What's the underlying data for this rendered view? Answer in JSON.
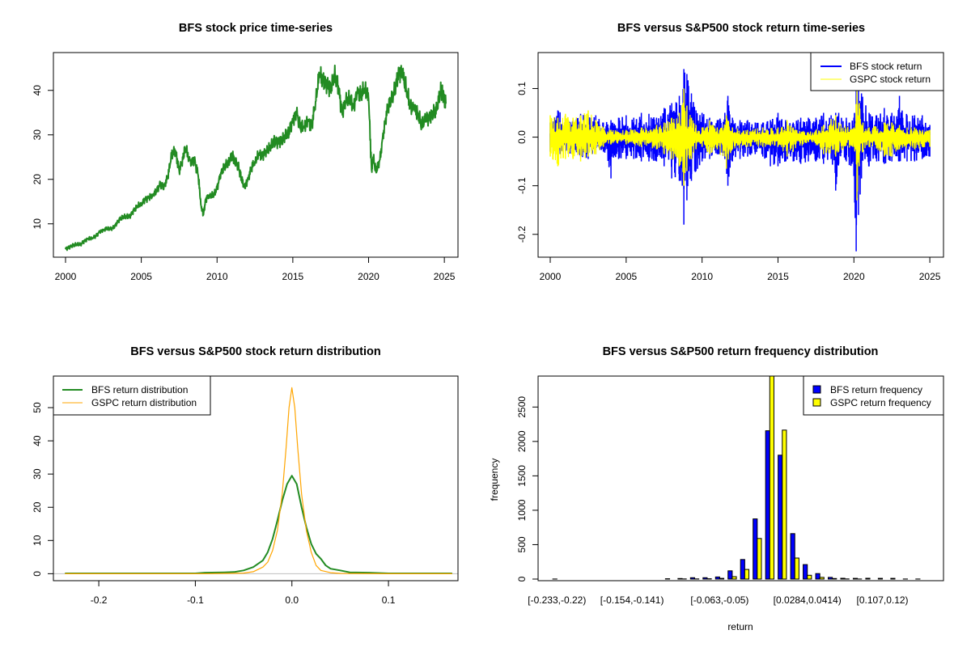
{
  "chart_data": [
    {
      "id": "price",
      "type": "line",
      "title": "BFS stock price time-series",
      "xlabel": "",
      "ylabel": "",
      "xlim": [
        1999.2,
        2025.9
      ],
      "ylim": [
        2.5,
        48.5
      ],
      "x_ticks": [
        2000,
        2005,
        2010,
        2015,
        2020,
        2025
      ],
      "x_tick_labels": [
        "2000",
        "2005",
        "2010",
        "2015",
        "2020",
        "2025"
      ],
      "y_ticks": [
        10,
        20,
        30,
        40
      ],
      "y_tick_labels": [
        "10",
        "20",
        "30",
        "40"
      ],
      "color": "#228B22",
      "series": [
        {
          "name": "BFS",
          "x": [
            2000.0,
            2000.25,
            2000.5,
            2000.75,
            2001.0,
            2001.25,
            2001.5,
            2001.75,
            2002.0,
            2002.25,
            2002.5,
            2002.75,
            2003.0,
            2003.25,
            2003.5,
            2003.75,
            2004.0,
            2004.25,
            2004.5,
            2004.75,
            2005.0,
            2005.25,
            2005.5,
            2005.75,
            2006.0,
            2006.25,
            2006.5,
            2006.75,
            2007.0,
            2007.25,
            2007.5,
            2007.75,
            2007.9,
            2008.25,
            2008.5,
            2008.75,
            2008.95,
            2009.1,
            2009.25,
            2009.5,
            2009.75,
            2010.0,
            2010.25,
            2010.5,
            2010.75,
            2011.0,
            2011.15,
            2011.4,
            2011.6,
            2011.8,
            2012.0,
            2012.25,
            2012.5,
            2012.75,
            2013.0,
            2013.25,
            2013.5,
            2013.75,
            2014.0,
            2014.25,
            2014.5,
            2014.75,
            2015.0,
            2015.25,
            2015.5,
            2015.75,
            2016.0,
            2016.25,
            2016.5,
            2016.75,
            2017.0,
            2017.25,
            2017.5,
            2017.75,
            2018.0,
            2018.25,
            2018.5,
            2018.75,
            2019.0,
            2019.25,
            2019.5,
            2019.75,
            2020.0,
            2020.2,
            2020.3,
            2020.5,
            2020.75,
            2021.0,
            2021.25,
            2021.5,
            2021.75,
            2022.0,
            2022.25,
            2022.5,
            2022.75,
            2023.0,
            2023.25,
            2023.5,
            2023.75,
            2024.0,
            2024.25,
            2024.5,
            2024.75,
            2024.9,
            2025.1
          ],
          "y": [
            4.3,
            4.8,
            5.2,
            5.3,
            5.4,
            6.2,
            6.6,
            6.8,
            7.2,
            8.2,
            8.7,
            8.9,
            8.8,
            9.5,
            10.8,
            11.4,
            11.6,
            11.8,
            13.0,
            13.9,
            14.5,
            15.5,
            15.9,
            16.5,
            17.2,
            19.0,
            18.5,
            20.5,
            25.5,
            26.5,
            22.0,
            24.5,
            27.0,
            24.0,
            24.5,
            21.0,
            14.0,
            12.0,
            15.5,
            16.5,
            16.2,
            18.0,
            21.5,
            23.0,
            23.5,
            25.5,
            24.5,
            23.0,
            20.0,
            18.5,
            19.5,
            22.5,
            24.0,
            25.5,
            25.5,
            26.5,
            27.0,
            28.5,
            28.5,
            28.8,
            29.5,
            30.5,
            33.5,
            35.0,
            31.5,
            32.0,
            33.0,
            32.0,
            37.5,
            43.5,
            42.5,
            41.5,
            40.0,
            43.5,
            41.0,
            35.0,
            37.5,
            38.0,
            36.5,
            39.5,
            39.0,
            40.5,
            38.0,
            22.0,
            25.0,
            21.5,
            24.5,
            31.0,
            36.0,
            37.5,
            40.5,
            44.5,
            43.5,
            40.0,
            36.5,
            36.0,
            35.0,
            32.0,
            33.5,
            34.0,
            35.0,
            35.5,
            40.0,
            39.5,
            37.0
          ]
        }
      ]
    },
    {
      "id": "returns",
      "type": "line",
      "title": "BFS versus S&P500 stock return time-series",
      "xlabel": "",
      "ylabel": "",
      "xlim": [
        1999.2,
        2025.9
      ],
      "ylim": [
        -0.247,
        0.174
      ],
      "x_ticks": [
        2000,
        2005,
        2010,
        2015,
        2020,
        2025
      ],
      "x_tick_labels": [
        "2000",
        "2005",
        "2010",
        "2015",
        "2020",
        "2025"
      ],
      "y_ticks": [
        -0.2,
        -0.1,
        0.0,
        0.1
      ],
      "y_tick_labels": [
        "-0.2",
        "-0.1",
        "0.0",
        "0.1"
      ],
      "legend": {
        "position": "top-right",
        "entries": [
          "BFS stock return",
          "GSPC stock return"
        ]
      },
      "series": [
        {
          "name": "BFS stock return",
          "color": "#0000FF",
          "x": [
            2000.0,
            2000.5,
            2001.0,
            2001.5,
            2002.0,
            2002.5,
            2003.0,
            2003.5,
            2004.0,
            2004.5,
            2005.0,
            2005.5,
            2006.0,
            2006.5,
            2007.0,
            2007.5,
            2008.0,
            2008.5,
            2008.8,
            2009.0,
            2009.3,
            2009.6,
            2010.0,
            2010.5,
            2011.0,
            2011.5,
            2011.7,
            2012.0,
            2012.5,
            2013.0,
            2013.5,
            2014.0,
            2014.5,
            2015.0,
            2015.5,
            2016.0,
            2016.5,
            2017.0,
            2017.5,
            2018.0,
            2018.5,
            2018.8,
            2019.0,
            2019.5,
            2020.0,
            2020.15,
            2020.3,
            2020.5,
            2021.0,
            2021.5,
            2022.0,
            2022.5,
            2023.0,
            2023.5,
            2024.0,
            2024.5,
            2025.0
          ],
          "high": [
            0.03,
            0.055,
            0.045,
            0.035,
            0.048,
            0.045,
            0.045,
            0.03,
            0.035,
            0.04,
            0.045,
            0.04,
            0.05,
            0.048,
            0.04,
            0.06,
            0.07,
            0.085,
            0.14,
            0.13,
            0.09,
            0.055,
            0.05,
            0.04,
            0.035,
            0.05,
            0.085,
            0.04,
            0.035,
            0.035,
            0.03,
            0.03,
            0.035,
            0.05,
            0.035,
            0.03,
            0.04,
            0.04,
            0.04,
            0.05,
            0.045,
            0.05,
            0.05,
            0.04,
            0.04,
            0.1,
            0.095,
            0.09,
            0.05,
            0.045,
            0.06,
            0.05,
            0.085,
            0.045,
            0.045,
            0.045,
            0.025
          ],
          "low": [
            -0.03,
            -0.04,
            -0.035,
            -0.035,
            -0.04,
            -0.045,
            -0.035,
            -0.03,
            -0.085,
            -0.045,
            -0.045,
            -0.045,
            -0.05,
            -0.05,
            -0.05,
            -0.06,
            -0.085,
            -0.09,
            -0.18,
            -0.13,
            -0.09,
            -0.07,
            -0.05,
            -0.045,
            -0.035,
            -0.045,
            -0.1,
            -0.05,
            -0.045,
            -0.04,
            -0.035,
            -0.04,
            -0.06,
            -0.06,
            -0.05,
            -0.05,
            -0.055,
            -0.05,
            -0.05,
            -0.055,
            -0.045,
            -0.11,
            -0.055,
            -0.05,
            -0.08,
            -0.235,
            -0.16,
            -0.085,
            -0.06,
            -0.05,
            -0.055,
            -0.05,
            -0.05,
            -0.05,
            -0.05,
            -0.045,
            -0.04
          ]
        },
        {
          "name": "GSPC stock return",
          "color": "#FFFF00",
          "x": [
            2000.0,
            2000.5,
            2001.0,
            2001.5,
            2002.0,
            2002.5,
            2003.0,
            2003.5,
            2004.0,
            2005.0,
            2006.0,
            2007.0,
            2007.5,
            2008.0,
            2008.5,
            2008.8,
            2009.0,
            2009.3,
            2009.6,
            2010.0,
            2010.5,
            2011.0,
            2011.6,
            2012.0,
            2013.0,
            2014.0,
            2015.0,
            2015.6,
            2016.0,
            2017.0,
            2018.0,
            2018.8,
            2019.0,
            2020.0,
            2020.2,
            2020.35,
            2020.6,
            2021.0,
            2022.0,
            2022.5,
            2023.0,
            2024.0,
            2025.0
          ],
          "high": [
            0.045,
            0.04,
            0.048,
            0.04,
            0.045,
            0.055,
            0.035,
            0.02,
            0.015,
            0.015,
            0.02,
            0.025,
            0.03,
            0.04,
            0.05,
            0.1,
            0.065,
            0.04,
            0.025,
            0.02,
            0.035,
            0.02,
            0.045,
            0.02,
            0.015,
            0.02,
            0.02,
            0.035,
            0.02,
            0.01,
            0.025,
            0.045,
            0.03,
            0.02,
            0.095,
            0.07,
            0.03,
            0.02,
            0.03,
            0.03,
            0.025,
            0.02,
            0.015
          ],
          "low": [
            -0.04,
            -0.06,
            -0.045,
            -0.045,
            -0.05,
            -0.04,
            -0.035,
            -0.02,
            -0.015,
            -0.015,
            -0.02,
            -0.025,
            -0.035,
            -0.045,
            -0.06,
            -0.1,
            -0.07,
            -0.045,
            -0.025,
            -0.02,
            -0.035,
            -0.025,
            -0.065,
            -0.025,
            -0.02,
            -0.02,
            -0.02,
            -0.04,
            -0.03,
            -0.01,
            -0.035,
            -0.04,
            -0.03,
            -0.02,
            -0.13,
            -0.06,
            -0.03,
            -0.02,
            -0.04,
            -0.04,
            -0.025,
            -0.025,
            -0.02
          ]
        }
      ]
    },
    {
      "id": "density",
      "type": "line",
      "title": "BFS versus S&P500 stock return distribution",
      "xlabel": "",
      "ylabel": "",
      "xlim": [
        -0.247,
        0.172
      ],
      "ylim": [
        -2.1,
        59.5
      ],
      "x_ticks": [
        -0.2,
        -0.1,
        0.0,
        0.1
      ],
      "x_tick_labels": [
        "-0.2",
        "-0.1",
        "0.0",
        "0.1"
      ],
      "y_ticks": [
        0,
        10,
        20,
        30,
        40,
        50
      ],
      "y_tick_labels": [
        "0",
        "10",
        "20",
        "30",
        "40",
        "50"
      ],
      "legend": {
        "position": "top-left",
        "entries": [
          "BFS return distribution",
          "GSPC return distribution"
        ]
      },
      "baseline_color": "#BEBEBE",
      "series": [
        {
          "name": "BFS return distribution",
          "color": "#228B22",
          "x": [
            -0.235,
            -0.1,
            -0.09,
            -0.07,
            -0.06,
            -0.05,
            -0.04,
            -0.03,
            -0.025,
            -0.02,
            -0.015,
            -0.01,
            -0.005,
            0.0,
            0.005,
            0.01,
            0.015,
            0.02,
            0.025,
            0.03,
            0.035,
            0.04,
            0.05,
            0.06,
            0.08,
            0.1,
            0.166
          ],
          "y": [
            0.1,
            0.1,
            0.3,
            0.4,
            0.5,
            1.0,
            2.0,
            4.0,
            6.5,
            10.5,
            16.0,
            22.0,
            27.0,
            29.5,
            27.0,
            20.0,
            14.0,
            9.0,
            6.0,
            4.5,
            2.5,
            1.5,
            1.0,
            0.4,
            0.3,
            0.1,
            0.1
          ]
        },
        {
          "name": "GSPC return distribution",
          "color": "#FFA500",
          "x": [
            -0.235,
            -0.09,
            -0.05,
            -0.04,
            -0.03,
            -0.025,
            -0.02,
            -0.015,
            -0.01,
            -0.006,
            -0.003,
            0.0,
            0.003,
            0.006,
            0.01,
            0.015,
            0.02,
            0.025,
            0.03,
            0.04,
            0.05,
            0.1,
            0.166
          ],
          "y": [
            0.0,
            0.0,
            0.2,
            0.6,
            2.0,
            3.5,
            7.0,
            13.0,
            24.0,
            38.0,
            50.0,
            56.0,
            50.0,
            38.0,
            24.0,
            13.0,
            6.5,
            2.5,
            1.0,
            0.3,
            0.1,
            0.0,
            0.0
          ]
        }
      ]
    },
    {
      "id": "histogram",
      "type": "bar",
      "title": "BFS versus S&P500 return frequency distribution",
      "xlabel": "return",
      "ylabel": "frequency",
      "ylim": [
        0,
        2950
      ],
      "y_ticks": [
        0,
        500,
        1000,
        1500,
        2000,
        2500
      ],
      "y_tick_labels": [
        "0",
        "500",
        "1000",
        "1500",
        "2000",
        "2500"
      ],
      "labeled_bins": [
        {
          "bin": 1,
          "label": "[-0.233,-0.22)"
        },
        {
          "bin": 7,
          "label": "[-0.154,-0.141)"
        },
        {
          "bin": 14,
          "label": "[-0.063,-0.05)"
        },
        {
          "bin": 21,
          "label": "[0.0284,0.0414)"
        },
        {
          "bin": 27,
          "label": "[0.107,0.12)"
        }
      ],
      "legend": {
        "position": "top-right",
        "entries": [
          "BFS return frequency",
          "GSPC return frequency"
        ]
      },
      "series": [
        {
          "name": "BFS return frequency",
          "color": "#0000FF",
          "values": [
            1,
            0,
            0,
            0,
            0,
            0,
            0,
            0,
            0,
            5,
            8,
            20,
            20,
            30,
            120,
            285,
            875,
            2155,
            1800,
            660,
            210,
            80,
            25,
            12,
            10,
            12,
            10,
            10,
            1,
            1
          ]
        },
        {
          "name": "GSPC return frequency",
          "color": "#FFFF00",
          "values": [
            0,
            0,
            0,
            0,
            0,
            0,
            0,
            0,
            0,
            0,
            2,
            2,
            5,
            10,
            35,
            140,
            590,
            3000,
            2165,
            305,
            55,
            25,
            8,
            2,
            1,
            0,
            0,
            0,
            0,
            0
          ]
        }
      ]
    }
  ]
}
